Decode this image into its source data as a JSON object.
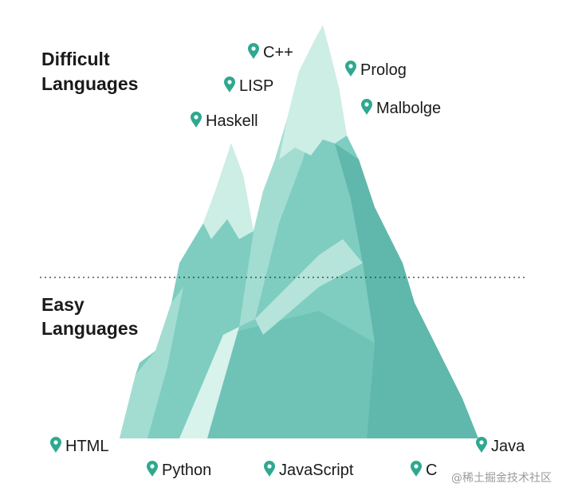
{
  "headings": {
    "difficult": [
      "Difficult",
      "Languages"
    ],
    "easy": [
      "Easy",
      "Languages"
    ]
  },
  "difficult_languages": [
    "C++",
    "LISP",
    "Haskell",
    "Prolog",
    "Malbolge"
  ],
  "easy_languages": [
    "HTML",
    "Python",
    "JavaScript",
    "C",
    "Java"
  ],
  "watermark": "@稀土掘金技术社区"
}
